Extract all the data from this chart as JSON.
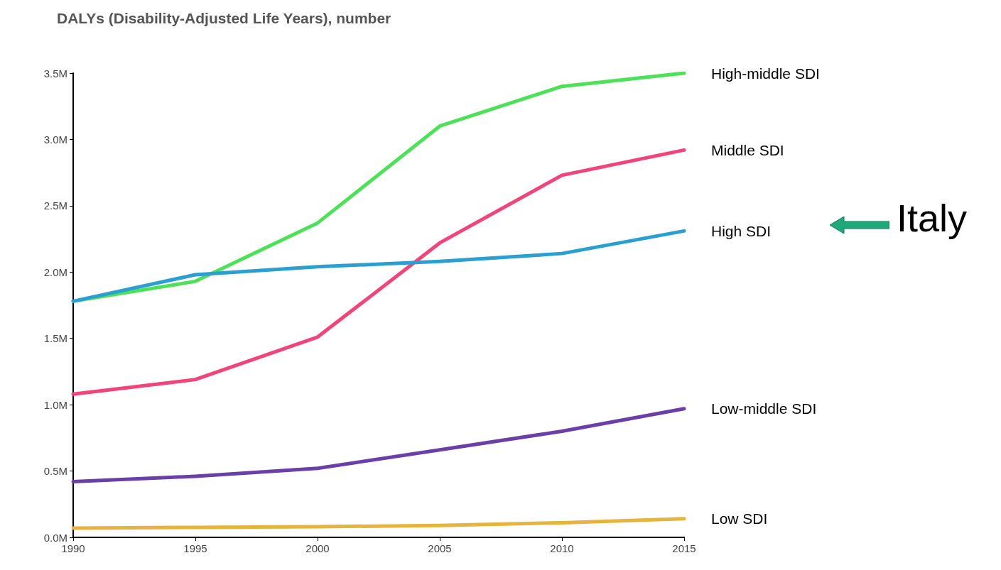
{
  "chart_data": {
    "type": "line",
    "title": "DALYs (Disability-Adjusted Life Years), number",
    "x": [
      1990,
      1995,
      2000,
      2005,
      2010,
      2015
    ],
    "xlim": [
      1990,
      2015
    ],
    "xticks": [
      1990,
      1995,
      2000,
      2005,
      2010,
      2015
    ],
    "ylim": [
      0,
      3500000
    ],
    "yticks": [
      {
        "value": 0,
        "label": "0.0M"
      },
      {
        "value": 500000,
        "label": "0.5M"
      },
      {
        "value": 1000000,
        "label": "1.0M"
      },
      {
        "value": 1500000,
        "label": "1.5M"
      },
      {
        "value": 2000000,
        "label": "2.0M"
      },
      {
        "value": 2500000,
        "label": "2.5M"
      },
      {
        "value": 3000000,
        "label": "3.0M"
      },
      {
        "value": 3500000,
        "label": "3.5M"
      }
    ],
    "series": [
      {
        "name": "High-middle SDI",
        "color": "#4fe05a",
        "values": [
          1780000,
          1930000,
          2370000,
          3100000,
          3400000,
          3500000
        ]
      },
      {
        "name": "Middle SDI",
        "color": "#f0457a",
        "values": [
          1080000,
          1190000,
          1510000,
          2220000,
          2730000,
          2920000
        ]
      },
      {
        "name": "High SDI",
        "color": "#2a9fd0",
        "values": [
          1780000,
          1980000,
          2040000,
          2080000,
          2140000,
          2310000
        ]
      },
      {
        "name": "Low-middle SDI",
        "color": "#6a3fa8",
        "values": [
          420000,
          460000,
          520000,
          660000,
          800000,
          970000
        ]
      },
      {
        "name": "Low SDI",
        "color": "#e6b43c",
        "values": [
          70000,
          75000,
          80000,
          90000,
          110000,
          140000
        ]
      }
    ],
    "annotations": [
      "Italy"
    ],
    "grid": false,
    "legend": false,
    "marker": "none",
    "line_style": "solid"
  }
}
